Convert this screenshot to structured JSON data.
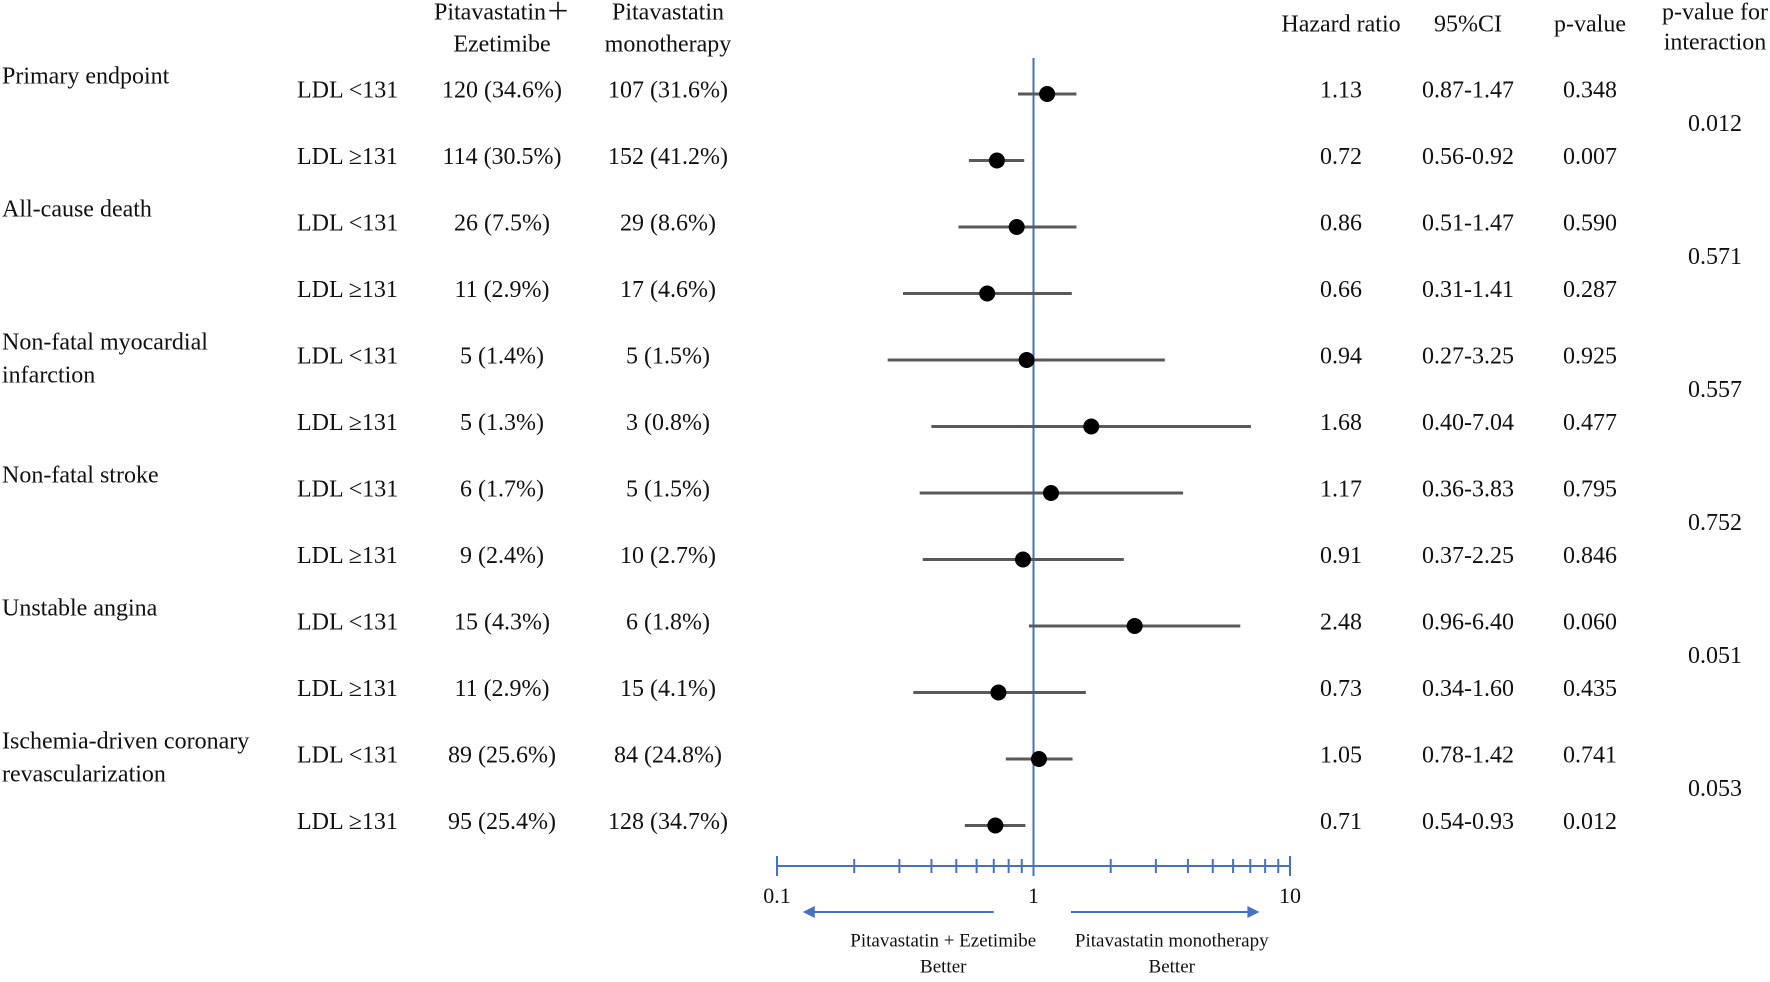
{
  "headers": {
    "combo": [
      "Pitavastatin＋",
      "Ezetimibe"
    ],
    "mono": [
      "Pitavastatin",
      "monotherapy"
    ],
    "hr": "Hazard ratio",
    "ci": "95%CI",
    "p": "p-value",
    "pint": [
      "p-value for",
      "interaction"
    ]
  },
  "chart_data": {
    "type": "forest",
    "scale": "log",
    "xlim": [
      0.1,
      10
    ],
    "reference": 1,
    "x_ticks": [
      0.1,
      1,
      10
    ],
    "x_tick_labels": [
      "0.1",
      "1",
      "10"
    ],
    "arrows": {
      "left": [
        "Pitavastatin + Ezetimibe",
        "Better"
      ],
      "right": [
        "Pitavastatin monotherapy",
        "Better"
      ]
    },
    "groups": [
      {
        "name": [
          "Primary endpoint"
        ],
        "p_interaction": "0.012",
        "rows": [
          {
            "subgroup": "LDL <131",
            "combo": "120 (34.6%)",
            "mono": "107 (31.6%)",
            "hr": 1.13,
            "lo": 0.87,
            "hi": 1.47,
            "hr_text": "1.13",
            "ci_text": "0.87-1.47",
            "p": "0.348"
          },
          {
            "subgroup": "LDL ≥131",
            "combo": "114 (30.5%)",
            "mono": "152 (41.2%)",
            "hr": 0.72,
            "lo": 0.56,
            "hi": 0.92,
            "hr_text": "0.72",
            "ci_text": "0.56-0.92",
            "p": "0.007"
          }
        ]
      },
      {
        "name": [
          "All-cause death"
        ],
        "p_interaction": "0.571",
        "rows": [
          {
            "subgroup": "LDL <131",
            "combo": "26 (7.5%)",
            "mono": "29 (8.6%)",
            "hr": 0.86,
            "lo": 0.51,
            "hi": 1.47,
            "hr_text": "0.86",
            "ci_text": "0.51-1.47",
            "p": "0.590"
          },
          {
            "subgroup": "LDL ≥131",
            "combo": "11 (2.9%)",
            "mono": "17 (4.6%)",
            "hr": 0.66,
            "lo": 0.31,
            "hi": 1.41,
            "hr_text": "0.66",
            "ci_text": "0.31-1.41",
            "p": "0.287"
          }
        ]
      },
      {
        "name": [
          "Non-fatal myocardial",
          "infarction"
        ],
        "p_interaction": "0.557",
        "rows": [
          {
            "subgroup": "LDL <131",
            "combo": "5 (1.4%)",
            "mono": "5 (1.5%)",
            "hr": 0.94,
            "lo": 0.27,
            "hi": 3.25,
            "hr_text": "0.94",
            "ci_text": "0.27-3.25",
            "p": "0.925"
          },
          {
            "subgroup": "LDL ≥131",
            "combo": "5 (1.3%)",
            "mono": "3 (0.8%)",
            "hr": 1.68,
            "lo": 0.4,
            "hi": 7.04,
            "hr_text": "1.68",
            "ci_text": "0.40-7.04",
            "p": "0.477"
          }
        ]
      },
      {
        "name": [
          "Non-fatal stroke"
        ],
        "p_interaction": "0.752",
        "rows": [
          {
            "subgroup": "LDL <131",
            "combo": "6 (1.7%)",
            "mono": "5 (1.5%)",
            "hr": 1.17,
            "lo": 0.36,
            "hi": 3.83,
            "hr_text": "1.17",
            "ci_text": "0.36-3.83",
            "p": "0.795"
          },
          {
            "subgroup": "LDL ≥131",
            "combo": "9 (2.4%)",
            "mono": "10 (2.7%)",
            "hr": 0.91,
            "lo": 0.37,
            "hi": 2.25,
            "hr_text": "0.91",
            "ci_text": "0.37-2.25",
            "p": "0.846"
          }
        ]
      },
      {
        "name": [
          "Unstable angina"
        ],
        "p_interaction": "0.051",
        "rows": [
          {
            "subgroup": "LDL <131",
            "combo": "15 (4.3%)",
            "mono": "6 (1.8%)",
            "hr": 2.48,
            "lo": 0.96,
            "hi": 6.4,
            "hr_text": "2.48",
            "ci_text": "0.96-6.40",
            "p": "0.060"
          },
          {
            "subgroup": "LDL ≥131",
            "combo": "11 (2.9%)",
            "mono": "15 (4.1%)",
            "hr": 0.73,
            "lo": 0.34,
            "hi": 1.6,
            "hr_text": "0.73",
            "ci_text": "0.34-1.60",
            "p": "0.435"
          }
        ]
      },
      {
        "name": [
          "Ischemia-driven coronary",
          "revascularization"
        ],
        "p_interaction": "0.053",
        "rows": [
          {
            "subgroup": "LDL <131",
            "combo": "89 (25.6%)",
            "mono": "84 (24.8%)",
            "hr": 1.05,
            "lo": 0.78,
            "hi": 1.42,
            "hr_text": "1.05",
            "ci_text": "0.78-1.42",
            "p": "0.741"
          },
          {
            "subgroup": "LDL ≥131",
            "combo": "95 (25.4%)",
            "mono": "128 (34.7%)",
            "hr": 0.71,
            "lo": 0.54,
            "hi": 0.93,
            "hr_text": "0.71",
            "ci_text": "0.54-0.93",
            "p": "0.012"
          }
        ]
      }
    ]
  },
  "colors": {
    "axis": "#4472c4",
    "whisker": "#595959",
    "point": "#000000"
  }
}
